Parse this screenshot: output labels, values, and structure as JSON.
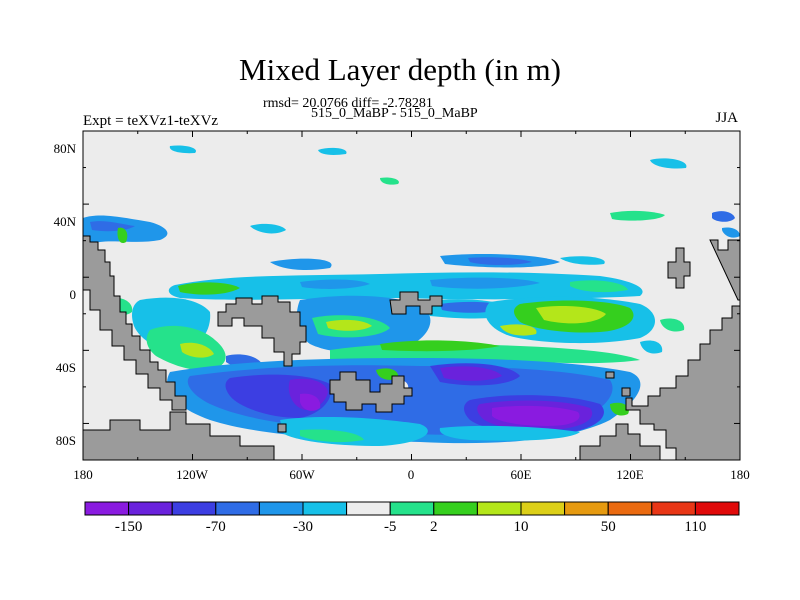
{
  "figure": {
    "title": "Mixed Layer depth (in m)",
    "stats": "rmsd= 20.0766 diff= -2.78281",
    "case": "515_0_MaBP - 515_0_MaBP",
    "expt": "Expt = teXVz1-teXVz",
    "season": "JJA"
  },
  "axes": {
    "lat_ticks": [
      "80N",
      "40N",
      "0",
      "40S",
      "80S"
    ],
    "lon_ticks": [
      "180",
      "120W",
      "60W",
      "0",
      "60E",
      "120E",
      "180"
    ]
  },
  "colorbar": {
    "colors": [
      "#8a1be0",
      "#6a22dc",
      "#3c3ee2",
      "#2f6ce6",
      "#1f96ea",
      "#17c0e8",
      "#ededed",
      "#25e28b",
      "#35cf1e",
      "#b4e61a",
      "#dccf18",
      "#e69a10",
      "#ea6a10",
      "#e83616",
      "#e00a0a"
    ],
    "labels": [
      "-150",
      "-70",
      "-30",
      "-5",
      "2",
      "10",
      "50",
      "110"
    ]
  },
  "palette": {
    "land": "#9b9b9b",
    "ocean_bg": "#ececec"
  }
}
